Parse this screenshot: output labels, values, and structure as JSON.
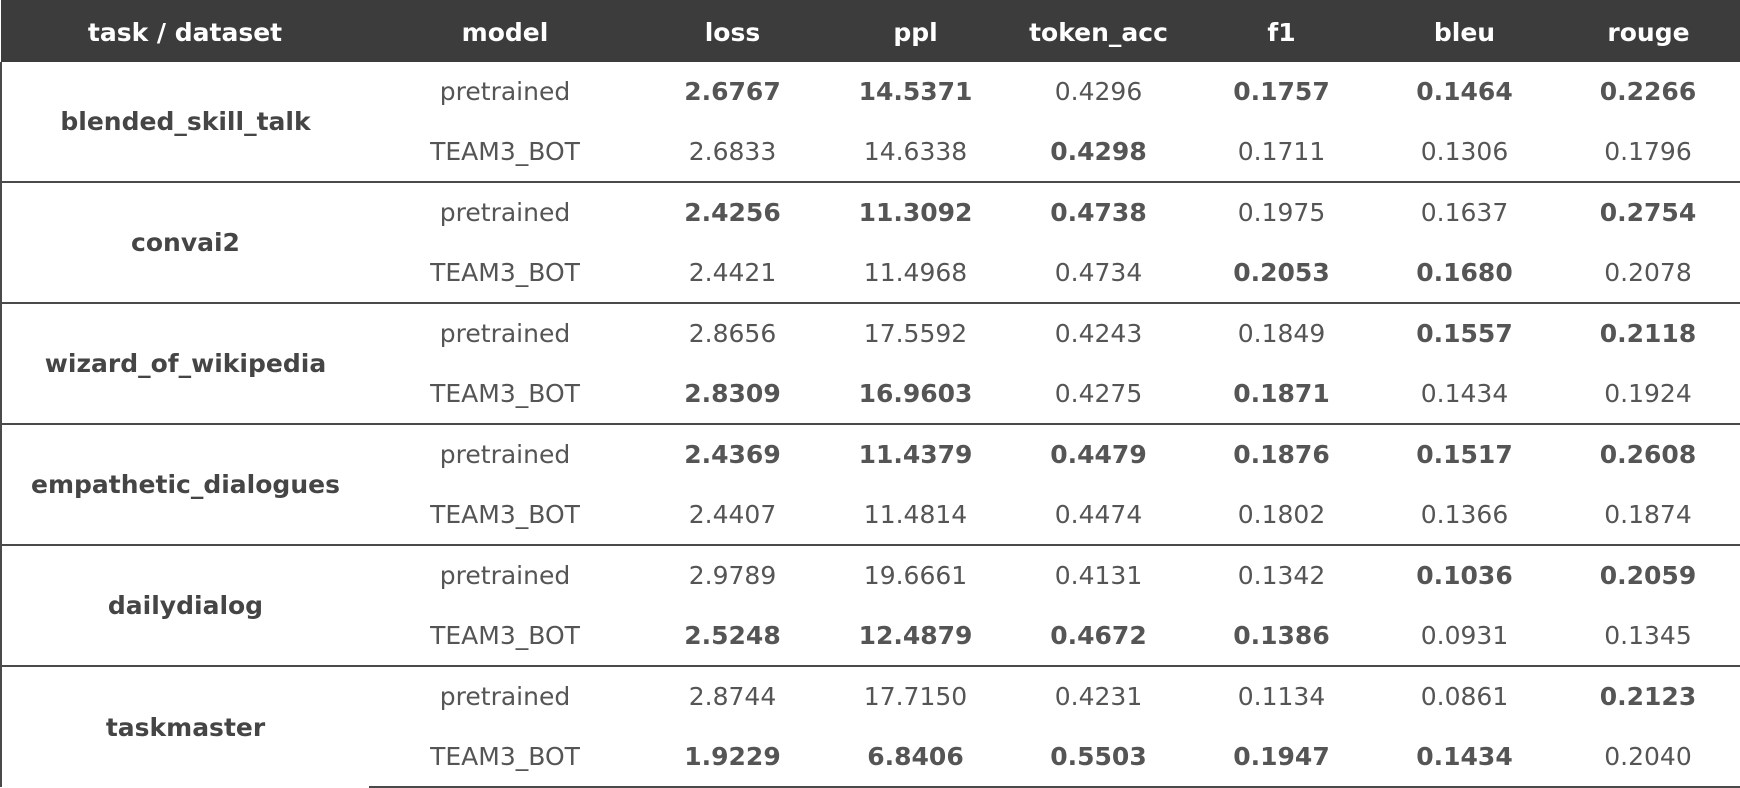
{
  "columns": [
    "task / dataset",
    "model",
    "loss",
    "ppl",
    "token_acc",
    "f1",
    "bleu",
    "rouge"
  ],
  "groups": [
    {
      "task": "blended_skill_talk",
      "rows": [
        {
          "model": "pretrained",
          "values": [
            "2.6767",
            "14.5371",
            "0.4296",
            "0.1757",
            "0.1464",
            "0.2266"
          ],
          "bold": [
            true,
            true,
            false,
            true,
            true,
            true
          ]
        },
        {
          "model": "TEAM3_BOT",
          "values": [
            "2.6833",
            "14.6338",
            "0.4298",
            "0.1711",
            "0.1306",
            "0.1796"
          ],
          "bold": [
            false,
            false,
            true,
            false,
            false,
            false
          ]
        }
      ]
    },
    {
      "task": "convai2",
      "rows": [
        {
          "model": "pretrained",
          "values": [
            "2.4256",
            "11.3092",
            "0.4738",
            "0.1975",
            "0.1637",
            "0.2754"
          ],
          "bold": [
            true,
            true,
            true,
            false,
            false,
            true
          ]
        },
        {
          "model": "TEAM3_BOT",
          "values": [
            "2.4421",
            "11.4968",
            "0.4734",
            "0.2053",
            "0.1680",
            "0.2078"
          ],
          "bold": [
            false,
            false,
            false,
            true,
            true,
            false
          ]
        }
      ]
    },
    {
      "task": "wizard_of_wikipedia",
      "rows": [
        {
          "model": "pretrained",
          "values": [
            "2.8656",
            "17.5592",
            "0.4243",
            "0.1849",
            "0.1557",
            "0.2118"
          ],
          "bold": [
            false,
            false,
            false,
            false,
            true,
            true
          ]
        },
        {
          "model": "TEAM3_BOT",
          "values": [
            "2.8309",
            "16.9603",
            "0.4275",
            "0.1871",
            "0.1434",
            "0.1924"
          ],
          "bold": [
            true,
            true,
            false,
            true,
            false,
            false
          ]
        }
      ]
    },
    {
      "task": "empathetic_dialogues",
      "rows": [
        {
          "model": "pretrained",
          "values": [
            "2.4369",
            "11.4379",
            "0.4479",
            "0.1876",
            "0.1517",
            "0.2608"
          ],
          "bold": [
            true,
            true,
            true,
            true,
            true,
            true
          ]
        },
        {
          "model": "TEAM3_BOT",
          "values": [
            "2.4407",
            "11.4814",
            "0.4474",
            "0.1802",
            "0.1366",
            "0.1874"
          ],
          "bold": [
            false,
            false,
            false,
            false,
            false,
            false
          ]
        }
      ]
    },
    {
      "task": "dailydialog",
      "rows": [
        {
          "model": "pretrained",
          "values": [
            "2.9789",
            "19.6661",
            "0.4131",
            "0.1342",
            "0.1036",
            "0.2059"
          ],
          "bold": [
            false,
            false,
            false,
            false,
            true,
            true
          ]
        },
        {
          "model": "TEAM3_BOT",
          "values": [
            "2.5248",
            "12.4879",
            "0.4672",
            "0.1386",
            "0.0931",
            "0.1345"
          ],
          "bold": [
            true,
            true,
            true,
            true,
            false,
            false
          ]
        }
      ]
    },
    {
      "task": "taskmaster",
      "rows": [
        {
          "model": "pretrained",
          "values": [
            "2.8744",
            "17.7150",
            "0.4231",
            "0.1134",
            "0.0861",
            "0.2123"
          ],
          "bold": [
            false,
            false,
            false,
            false,
            false,
            true
          ]
        },
        {
          "model": "TEAM3_BOT",
          "values": [
            "1.9229",
            "6.8406",
            "0.5503",
            "0.1947",
            "0.1434",
            "0.2040"
          ],
          "bold": [
            true,
            true,
            true,
            true,
            true,
            false
          ]
        }
      ]
    }
  ],
  "colors": {
    "header_background": "#3c3c3c",
    "header_text": "#ffffff",
    "cell_text": "#555555",
    "dark_group_text": "#000000",
    "border": "#4a4a4a"
  }
}
